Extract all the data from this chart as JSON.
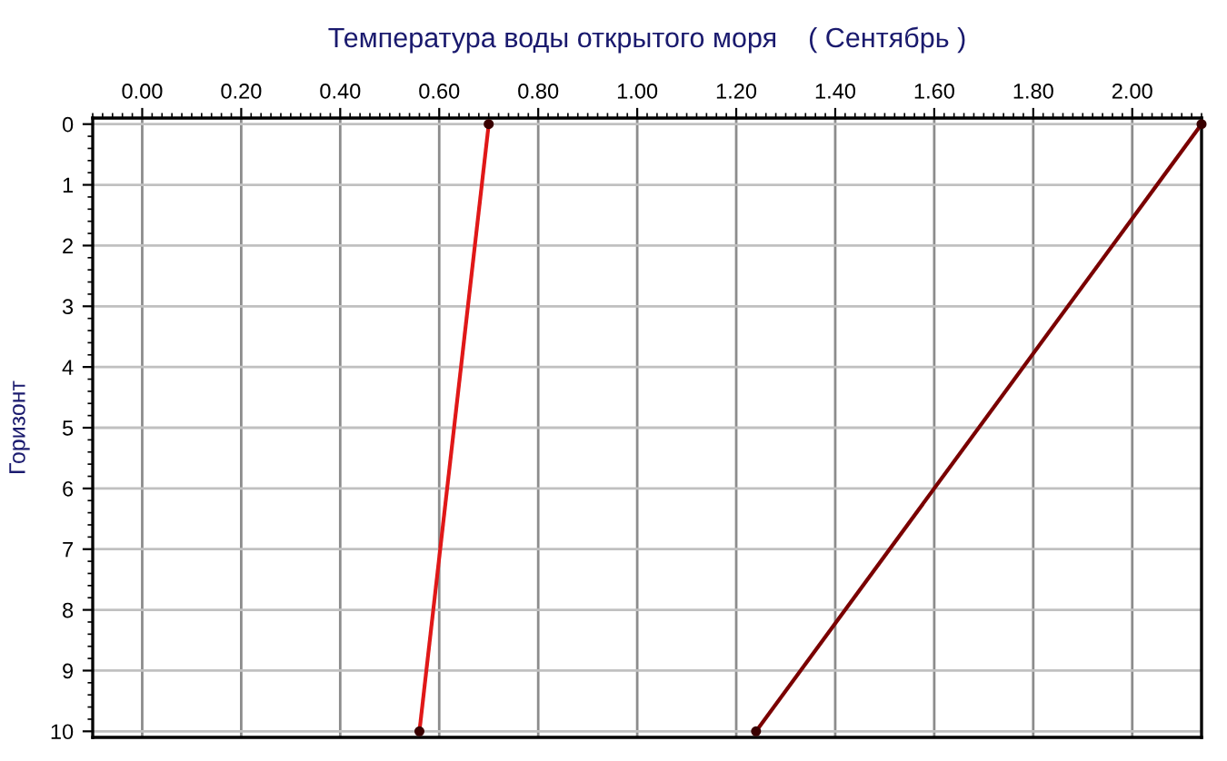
{
  "chart_data": {
    "type": "line",
    "title": "Температура воды открытого моря    ( Сентябрь )",
    "ylabel": "Горизонт",
    "series": [
      {
        "color": "#e01818",
        "x": [
          0.7,
          0.56
        ],
        "values": [
          0,
          10
        ]
      },
      {
        "color": "#7a0000",
        "x": [
          2.14,
          1.24
        ],
        "values": [
          0,
          10
        ]
      }
    ],
    "xlim": [
      -0.1,
      2.14
    ],
    "xticks": [
      {
        "value": 0,
        "label": "0.00"
      },
      {
        "value": 0.2,
        "label": "0.20"
      },
      {
        "value": 0.4,
        "label": "0.40"
      },
      {
        "value": 0.6,
        "label": "0.60"
      },
      {
        "value": 0.8,
        "label": "0.80"
      },
      {
        "value": 1.0,
        "label": "1.00"
      },
      {
        "value": 1.2,
        "label": "1.20"
      },
      {
        "value": 1.4,
        "label": "1.40"
      },
      {
        "value": 1.6,
        "label": "1.60"
      },
      {
        "value": 1.8,
        "label": "1.80"
      },
      {
        "value": 2.0,
        "label": "2.00"
      }
    ],
    "ylim": [
      10.1,
      -0.1
    ],
    "yticks": [
      0,
      1,
      2,
      3,
      4,
      5,
      6,
      7,
      8,
      9,
      10
    ],
    "grid": true,
    "marker": "circle",
    "line_style": "solid"
  }
}
